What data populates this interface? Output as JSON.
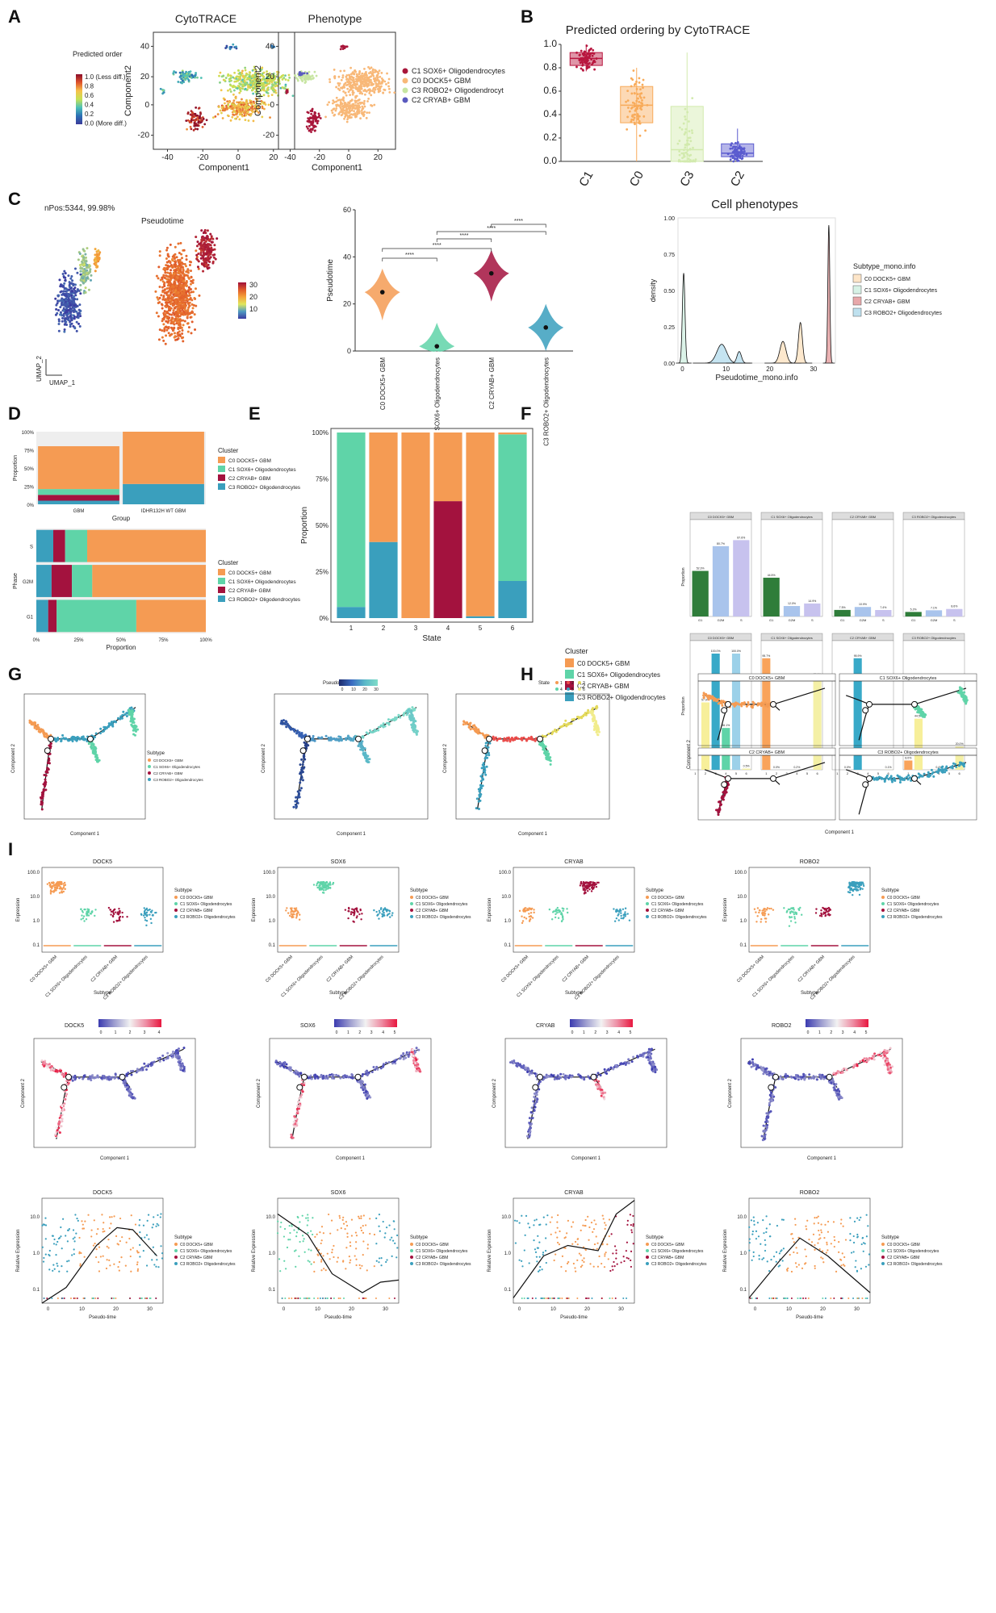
{
  "panel_letters": [
    "A",
    "B",
    "C",
    "D",
    "E",
    "F",
    "G",
    "H",
    "I"
  ],
  "chart_data": [
    {
      "id": "A1",
      "type": "scatter",
      "title": "CytoTRACE",
      "xlabel": "Component1",
      "ylabel": "Component2",
      "xticks": [
        "-40",
        "-20",
        "0",
        "20"
      ],
      "yticks": [
        "40",
        "20",
        "0",
        "-20"
      ],
      "legend_title": "Predicted order",
      "legend_items": [
        "1.0 (Less diff.)",
        "0.8",
        "0.6",
        "0.4",
        "0.2",
        "0.0 (More diff.)"
      ],
      "color_scale": [
        "#8b0d2a",
        "#e0552c",
        "#f6c24a",
        "#c6e254",
        "#4cc0b8",
        "#2b6fb4",
        "#3b3b9a"
      ]
    },
    {
      "id": "A2",
      "type": "scatter",
      "title": "Phenotype",
      "xlabel": "Component1",
      "ylabel": "Component2",
      "xticks": [
        "-40",
        "-20",
        "0",
        "20"
      ],
      "yticks": [
        "40",
        "20",
        "0",
        "-20"
      ],
      "legend_items": [
        "C1 SOX6+ Oligodendrocytes",
        "C0 DOCK5+ GBM",
        "C3 ROBO2+ Oligodendrocyt",
        "C2 CRYAB+ GBM"
      ],
      "colors": [
        "#a8163a",
        "#f8b878",
        "#c7e5a1",
        "#5a5abf"
      ]
    },
    {
      "id": "B",
      "type": "box",
      "title": "Predicted ordering by CytoTRACE",
      "categories": [
        "C1",
        "C0",
        "C3",
        "C2"
      ],
      "yticks": [
        "1.0",
        "0.8",
        "0.6",
        "0.4",
        "0.2",
        "0.0"
      ],
      "ylim": [
        0,
        1
      ],
      "median": [
        0.88,
        0.48,
        0.1,
        0.07
      ],
      "q1": [
        0.82,
        0.33,
        0.0,
        0.04
      ],
      "q3": [
        0.93,
        0.64,
        0.47,
        0.15
      ],
      "whisker_low": [
        0.77,
        0.0,
        0.0,
        0.0
      ],
      "whisker_high": [
        1.0,
        0.8,
        0.93,
        0.28
      ],
      "colors": [
        "#b8163f",
        "#f8ab5a",
        "#d2eaae",
        "#5a5bcf"
      ]
    },
    {
      "id": "C1",
      "type": "scatter",
      "title": "Pseudotime",
      "note": "nPos:5344, 99.98%",
      "xlabel": "UMAP_1",
      "ylabel": "UMAP_2",
      "colorbar_ticks": [
        "30",
        "20",
        "10"
      ]
    },
    {
      "id": "C2",
      "type": "violin",
      "ylabel": "Pseudotime",
      "categories": [
        "C0 DOCK5+ GBM",
        "C1 SOX6+ Oligodendrocytes",
        "C2 CRYAB+ GBM",
        "C3 ROBO2+ Oligodendrocytes"
      ],
      "medians": [
        25,
        2,
        33,
        10
      ],
      "yticks": [
        "60",
        "40",
        "20",
        "0"
      ],
      "ylim": [
        0,
        60
      ],
      "colors": [
        "#f59b53",
        "#5fd4a8",
        "#a3123e",
        "#3a9fbd"
      ],
      "significance": [
        "****",
        "****",
        "****",
        "****",
        "****",
        "****"
      ]
    },
    {
      "id": "C3",
      "type": "area",
      "title": "Cell phenotypes",
      "xlabel": "Pseudotime_mono.info",
      "ylabel": "density",
      "xticks": [
        "0",
        "10",
        "20",
        "30"
      ],
      "yticks": [
        "1.00",
        "0.75",
        "0.50",
        "0.25",
        "0.00"
      ],
      "legend_title": "Subtype_mono.info",
      "legend_items": [
        "C0 DOCK5+ GBM",
        "C1 SOX6+ Oligodendrocytes",
        "C2 CRYAB+ GBM",
        "C3 ROBO2+ Oligodendrocytes"
      ],
      "colors": [
        "#fde5c8",
        "#d7f2e6",
        "#e8a8aa",
        "#bfe1ef"
      ]
    },
    {
      "id": "D1",
      "type": "bar",
      "stacked": true,
      "xlabel": "Group",
      "ylabel": "Proportion",
      "categories": [
        "GBM",
        "IDHR132H WT GBM"
      ],
      "yticks": [
        "100%",
        "75%",
        "50%",
        "25%",
        "0%"
      ],
      "legend_title": "Cluster",
      "legend_items": [
        "C0 DOCK5+ GBM",
        "C1 SOX6+ Oligodendrocytes",
        "C2 CRYAB+ GBM",
        "C3 ROBO2+ Oligodendrocytes"
      ],
      "series": [
        {
          "name": "C3 ROBO2+ Oligodendrocytes",
          "values": [
            0.05,
            0.28
          ]
        },
        {
          "name": "C2 CRYAB+ GBM",
          "values": [
            0.08,
            0.0
          ]
        },
        {
          "name": "C1 SOX6+ Oligodendrocytes",
          "values": [
            0.08,
            0.0
          ]
        },
        {
          "name": "C0 DOCK5+ GBM",
          "values": [
            0.59,
            0.72
          ]
        }
      ],
      "colors": [
        "#3a9fbd",
        "#a3123e",
        "#5fd4a8",
        "#f59b53"
      ]
    },
    {
      "id": "D2",
      "type": "bar",
      "stacked": true,
      "orientation": "horizontal",
      "xlabel": "Proportion",
      "ylabel": "Phase",
      "categories": [
        "S",
        "G2M",
        "G1"
      ],
      "xticks": [
        "0%",
        "25%",
        "50%",
        "75%",
        "100%"
      ],
      "legend_title": "Cluster",
      "legend_items": [
        "C0 DOCK5+ GBM",
        "C1 SOX6+ Oligodendrocytes",
        "C2 CRYAB+ GBM",
        "C3 ROBO2+ Oligodendrocytes"
      ],
      "series": [
        {
          "name": "C3 ROBO2+ Oligodendrocytes",
          "values": [
            0.1,
            0.09,
            0.07
          ]
        },
        {
          "name": "C2 CRYAB+ GBM",
          "values": [
            0.07,
            0.12,
            0.05
          ]
        },
        {
          "name": "C1 SOX6+ Oligodendrocytes",
          "values": [
            0.13,
            0.12,
            0.47
          ]
        },
        {
          "name": "C0 DOCK5+ GBM",
          "values": [
            0.7,
            0.67,
            0.41
          ]
        }
      ],
      "colors": [
        "#3a9fbd",
        "#a3123e",
        "#5fd4a8",
        "#f59b53"
      ]
    },
    {
      "id": "E",
      "type": "bar",
      "stacked": true,
      "xlabel": "State",
      "ylabel": "Proportion",
      "categories": [
        "1",
        "2",
        "3",
        "4",
        "5",
        "6"
      ],
      "yticks": [
        "100%",
        "75%",
        "50%",
        "25%",
        "0%"
      ],
      "legend_title": "Cluster",
      "legend_items": [
        "C0 DOCK5+ GBM",
        "C1 SOX6+ Oligodendrocytes",
        "C2 CRYAB+ GBM",
        "C3 ROBO2+ Oligodendrocytes"
      ],
      "series": [
        {
          "name": "C3 ROBO2+ Oligodendrocytes",
          "values": [
            0.06,
            0.41,
            0.0,
            0.0,
            0.01,
            0.2
          ]
        },
        {
          "name": "C2 CRYAB+ GBM",
          "values": [
            0.0,
            0.0,
            0.0,
            0.63,
            0.0,
            0.0
          ]
        },
        {
          "name": "C1 SOX6+ Oligodendrocytes",
          "values": [
            0.94,
            0.0,
            0.0,
            0.0,
            0.0,
            0.79
          ]
        },
        {
          "name": "C0 DOCK5+ GBM",
          "values": [
            0.0,
            0.59,
            1.0,
            0.37,
            0.99,
            0.01
          ]
        }
      ],
      "colors": [
        "#3a9fbd",
        "#a3123e",
        "#5fd4a8",
        "#f59b53"
      ]
    },
    {
      "id": "F",
      "type": "bar",
      "facets": true,
      "ylabel": "Proportion",
      "top_facets": [
        "C0 DOCK5+ GBM",
        "C1 SOX6+ Oligodendrocytes",
        "C2 CRYAB+ GBM",
        "C3 ROBO2+ Oligodendrocytes"
      ],
      "top_categories": [
        "G1",
        "G2M",
        "S"
      ],
      "top_values": [
        [
          0.523,
          0.807,
          0.876
        ],
        [
          0.445,
          0.12,
          0.149
        ],
        [
          0.075,
          0.109,
          0.074
        ],
        [
          0.052,
          0.071,
          0.086
        ]
      ],
      "top_labels": [
        [
          "52.3%",
          "80.7%",
          "87.6%"
        ],
        [
          "44.5%",
          "12.0%",
          "14.9%"
        ],
        [
          "7.5%",
          "10.9%",
          "7.4%"
        ],
        [
          "5.2%",
          "7.1%",
          "8.6%"
        ]
      ],
      "top_colors": [
        "#2f7d3a",
        "#a9c4ec",
        "#c7c2ee"
      ],
      "bottom_facets": [
        "C0 DOCK5+ GBM",
        "C1 SOX6+ Oligodendrocytes",
        "C2 CRYAB+ GBM",
        "C3 ROBO2+ Oligodendrocytes"
      ],
      "bottom_categories": [
        "1",
        "2",
        "3",
        "4",
        "5",
        "6"
      ],
      "bottom_values": [
        [
          0,
          0.58,
          1.0,
          0.36,
          1.0,
          0.01
        ],
        [
          0.96,
          0,
          0,
          0,
          0,
          0.8
        ],
        [
          0,
          0,
          0.96,
          0,
          0,
          0.001
        ],
        [
          0.08,
          0.44,
          0,
          0,
          0,
          0.2
        ]
      ],
      "bottom_labels": [
        [
          "",
          "57.9%",
          "100.0%",
          "36.1%",
          "100.0%",
          "0.5%"
        ],
        [
          "95.7%",
          "0.0%",
          "",
          "0.2%",
          "",
          "79.1%"
        ],
        [
          "",
          "0.0%",
          "95.9%",
          "",
          "",
          "0.1%"
        ],
        [
          "8.0%",
          "44.5%",
          "",
          "0.4%",
          "",
          "20.0%"
        ]
      ],
      "bottom_colors": [
        "#f9a35b",
        "#f7ef9a",
        "#38a9c8",
        "#5fd4a8",
        "#9cd1e9",
        "#f4f0a5"
      ]
    },
    {
      "id": "G1",
      "type": "scatter",
      "legend_title": "Subtype",
      "xlabel": "Component 1",
      "ylabel": "Component 2",
      "legend_items": [
        "C0 DOCK5+ GBM",
        "C1 SOX6+ Oligodendrocytes",
        "C2 CRYAB+ GBM",
        "C3 ROBO2+ Oligodendrocytes"
      ]
    },
    {
      "id": "G2",
      "type": "scatter",
      "legend_title": "Pseudotime",
      "colorbar_ticks": [
        "0",
        "10",
        "20",
        "30"
      ],
      "xlabel": "Component 1",
      "ylabel": "Component 2"
    },
    {
      "id": "G3",
      "type": "scatter",
      "legend_title": "State",
      "states": [
        "1",
        "2",
        "3",
        "4",
        "5",
        "6"
      ],
      "xlabel": "Component 1",
      "ylabel": "Component 2"
    },
    {
      "id": "H",
      "type": "scatter",
      "facets": true,
      "facet_titles": [
        "C0 DOCK5+ GBM",
        "C1 SOX6+ Oligodendrocytes",
        "C2 CRYAB+ GBM",
        "C3 ROBO2+ Oligodendrocytes"
      ],
      "xlabel": "Component 1",
      "ylabel": "Component 2"
    },
    {
      "id": "I1",
      "type": "scatter",
      "genes": [
        "DOCK5",
        "SOX6",
        "CRYAB",
        "ROBO2"
      ],
      "ylabel": "Expression",
      "xlabel": "Subtype",
      "yticks": [
        "100.0",
        "10.0",
        "1.0",
        "0.1"
      ],
      "categories": [
        "C0 DOCK5+ GBM",
        "C1 SOX6+ Oligodendrocytes",
        "C2 CRYAB+ GBM",
        "C3 ROBO2+ Oligodendrocytes"
      ],
      "legend_title": "Subtype",
      "legend_items": [
        "C0 DOCK5+ GBM",
        "C1 SOX6+ Oligodendrocytes",
        "C2 CRYAB+ GBM",
        "C3 ROBO2+ Oligodendrocytes"
      ],
      "highlight": [
        0,
        1,
        2,
        3
      ]
    },
    {
      "id": "I2",
      "type": "scatter",
      "genes": [
        "DOCK5",
        "SOX6",
        "CRYAB",
        "ROBO2"
      ],
      "xlabel": "Component 1",
      "ylabel": "Component 2",
      "scales": [
        [
          "0",
          "1",
          "2",
          "3",
          "4"
        ],
        [
          "0",
          "1",
          "2",
          "3",
          "4",
          "5"
        ],
        [
          "0",
          "1",
          "2",
          "3",
          "4",
          "5"
        ],
        [
          "0",
          "1",
          "2",
          "3",
          "4",
          "5"
        ]
      ]
    },
    {
      "id": "I3",
      "type": "scatter",
      "genes": [
        "DOCK5",
        "SOX6",
        "CRYAB",
        "ROBO2"
      ],
      "xlabel": "Pseudo-time",
      "ylabel": "Relative Expression",
      "legend_title": "Subtype",
      "legend_items": [
        "C0 DOCK5+ GBM",
        "C1 SOX6+ Oligodendrocytes",
        "C2 CRYAB+ GBM",
        "C3 ROBO2+ Oligodendrocytes"
      ]
    }
  ]
}
